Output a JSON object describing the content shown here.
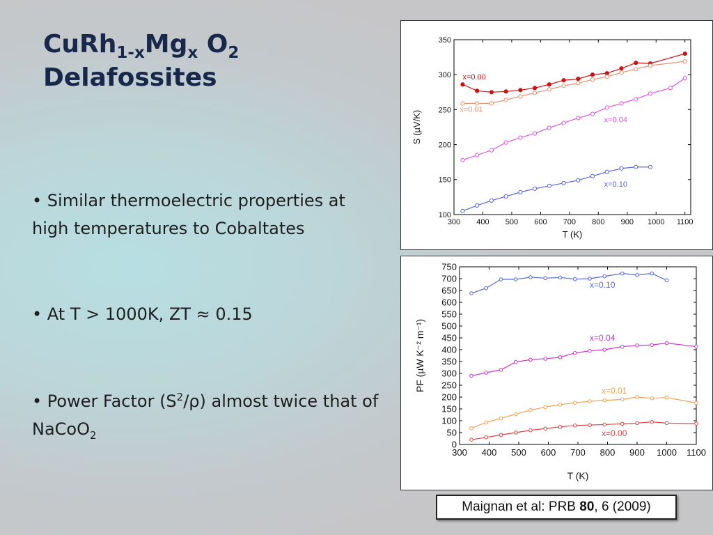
{
  "slide": {
    "title": {
      "line1": {
        "p1": "CuRh",
        "p2": "1-x",
        "p3": "Mg",
        "p4": "x",
        "p5": " O",
        "p6": "2"
      },
      "line2": "Delafossites"
    },
    "bullets": [
      {
        "text": "• Similar thermoelectric properties at high temperatures to Cobaltates"
      },
      {
        "text": "• At T > 1000K, ZT ≈ 0.15"
      },
      {
        "parts": {
          "a": "• Power  Factor (S",
          "b": "2",
          "c": "/ρ) almost twice that of NaCoO",
          "d": "2"
        }
      }
    ],
    "citation": {
      "a": "Maignan et al: PRB ",
      "b": "80",
      "c": ", 6 (2009)"
    }
  },
  "chart_data": [
    {
      "type": "line",
      "xlabel": "T (K)",
      "ylabel": "S (µV/K)",
      "xlim": [
        300,
        1120
      ],
      "ylim": [
        100,
        350
      ],
      "xticks": [
        300,
        400,
        500,
        600,
        700,
        800,
        900,
        1000,
        1100
      ],
      "yticks": [
        100,
        150,
        200,
        250,
        300,
        350
      ],
      "grid": false,
      "series": [
        {
          "name": "x=0.00",
          "color": "#cc1111",
          "filled": true,
          "x": [
            330,
            380,
            430,
            480,
            530,
            580,
            630,
            680,
            730,
            780,
            830,
            880,
            930,
            980,
            1100
          ],
          "y": [
            286,
            277,
            275,
            276,
            278,
            281,
            286,
            292,
            294,
            300,
            302,
            309,
            317,
            316,
            330
          ]
        },
        {
          "name": "x=0.01",
          "color": "#e89070",
          "filled": false,
          "x": [
            330,
            380,
            430,
            480,
            530,
            580,
            630,
            680,
            730,
            780,
            830,
            880,
            930,
            980,
            1100
          ],
          "y": [
            259,
            259,
            259,
            264,
            269,
            274,
            279,
            284,
            288,
            293,
            297,
            303,
            308,
            313,
            319
          ]
        },
        {
          "name": "x=0.04",
          "color": "#dd55dd",
          "filled": false,
          "x": [
            330,
            380,
            430,
            480,
            530,
            580,
            630,
            680,
            730,
            780,
            830,
            880,
            930,
            980,
            1050,
            1100
          ],
          "y": [
            178,
            185,
            192,
            203,
            210,
            216,
            224,
            231,
            238,
            244,
            253,
            259,
            265,
            273,
            281,
            295
          ]
        },
        {
          "name": "x=0.10",
          "color": "#5566dd",
          "filled": false,
          "x": [
            330,
            380,
            430,
            480,
            530,
            580,
            630,
            680,
            730,
            780,
            830,
            880,
            930,
            980
          ],
          "y": [
            105,
            113,
            120,
            126,
            132,
            137,
            141,
            145,
            149,
            155,
            161,
            166,
            168,
            168
          ]
        }
      ]
    },
    {
      "type": "line",
      "xlabel": "T (K)",
      "ylabel": "PF (µW K⁻² m⁻¹)",
      "xlim": [
        300,
        1100
      ],
      "ylim": [
        0,
        750
      ],
      "xticks": [
        300,
        400,
        500,
        600,
        700,
        800,
        900,
        1000,
        1100
      ],
      "yticks": [
        0,
        50,
        100,
        150,
        200,
        250,
        300,
        350,
        400,
        450,
        500,
        550,
        600,
        650,
        700,
        750
      ],
      "grid": false,
      "series": [
        {
          "name": "x=0.10",
          "color": "#5566dd",
          "x": [
            340,
            390,
            440,
            490,
            540,
            590,
            640,
            690,
            740,
            790,
            850,
            900,
            950,
            1000
          ],
          "y": [
            638,
            660,
            697,
            697,
            706,
            702,
            705,
            698,
            700,
            710,
            722,
            715,
            722,
            693
          ]
        },
        {
          "name": "x=0.04",
          "color": "#cc33cc",
          "x": [
            340,
            390,
            440,
            490,
            540,
            590,
            640,
            690,
            740,
            790,
            850,
            900,
            950,
            1000,
            1100
          ],
          "y": [
            290,
            303,
            315,
            348,
            358,
            362,
            368,
            386,
            395,
            400,
            413,
            418,
            420,
            428,
            413
          ]
        },
        {
          "name": "x=0.01",
          "color": "#f0a050",
          "x": [
            340,
            390,
            440,
            490,
            540,
            590,
            640,
            690,
            740,
            790,
            850,
            900,
            950,
            1000,
            1100
          ],
          "y": [
            68,
            93,
            110,
            128,
            145,
            158,
            168,
            176,
            182,
            186,
            190,
            200,
            195,
            198,
            175
          ]
        },
        {
          "name": "x=0.00",
          "color": "#dd4444",
          "x": [
            340,
            390,
            440,
            490,
            540,
            590,
            640,
            690,
            740,
            790,
            850,
            900,
            950,
            1000,
            1100
          ],
          "y": [
            20,
            30,
            40,
            50,
            60,
            67,
            74,
            80,
            82,
            84,
            87,
            90,
            95,
            90,
            88
          ]
        }
      ]
    }
  ]
}
